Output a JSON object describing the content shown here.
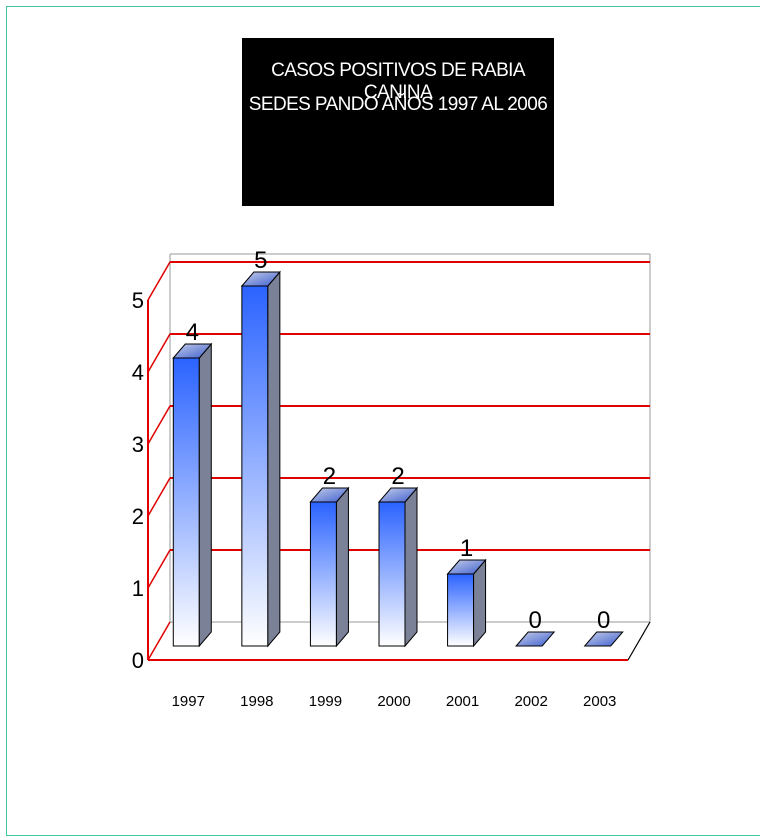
{
  "chart_data": {
    "type": "bar",
    "title": "CASOS POSITIVOS DE RABIA CANINA",
    "subtitle": "SEDES PANDO AÑOS 1997 AL 2006",
    "categories": [
      "1997",
      "1998",
      "1999",
      "2000",
      "2001",
      "2002",
      "2003"
    ],
    "values": [
      4,
      5,
      2,
      2,
      1,
      0,
      0
    ],
    "data_labels": [
      "4",
      "5",
      "2",
      "2",
      "1",
      "0",
      "0"
    ],
    "y_ticks": [
      "0",
      "1",
      "2",
      "3",
      "4",
      "5"
    ],
    "ylim": [
      0,
      5
    ],
    "grid": true,
    "style": "3d-bar",
    "colors": {
      "bar_top": "#2b63ff",
      "bar_bottom": "#ffffff",
      "gridline": "#e00000",
      "frame": "#3fc6a0",
      "title_bg": "#000000",
      "title_text": "#ffffff"
    }
  }
}
